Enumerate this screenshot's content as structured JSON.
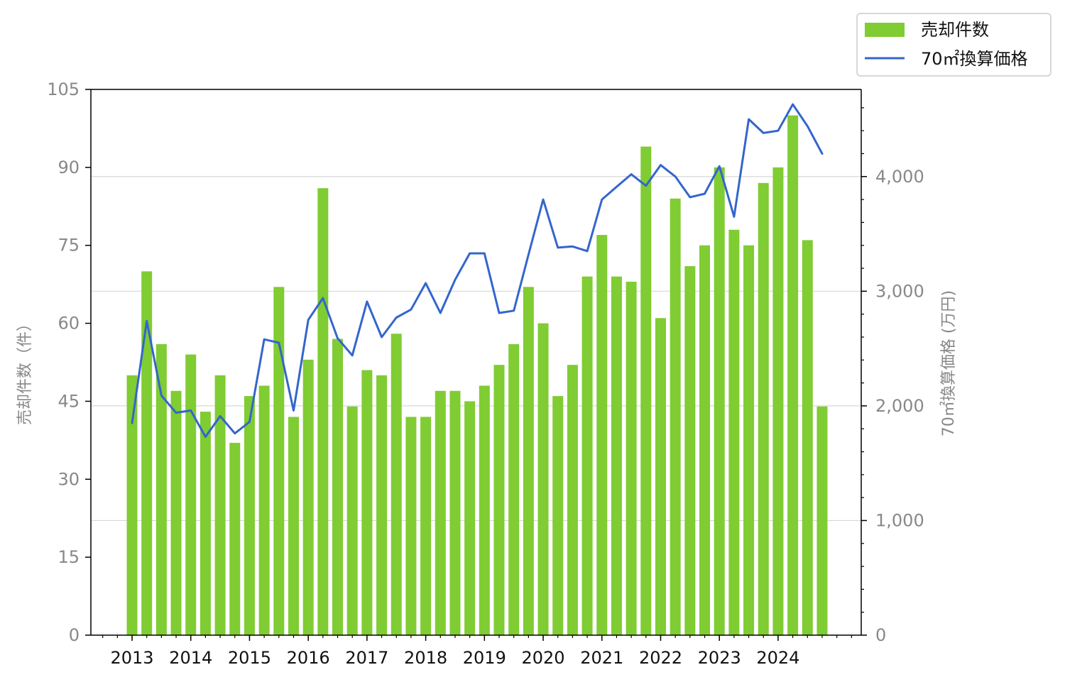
{
  "chart_data": {
    "type": "bar",
    "title": "",
    "xlabel": "",
    "ylabel": "売却件数（件）",
    "y2label": "70㎡換算価格 (万円)",
    "ylim": [
      0,
      105
    ],
    "y2lim": [
      0,
      4760
    ],
    "yticks": [
      "0",
      "15",
      "30",
      "45",
      "60",
      "75",
      "90",
      "105"
    ],
    "yticks_right": [
      "0",
      "1,000",
      "2,000",
      "3,000",
      "4,000"
    ],
    "x_tick_labels": [
      "2013",
      "2014",
      "2015",
      "2016",
      "2017",
      "2018",
      "2019",
      "2020",
      "2021",
      "2022",
      "2023",
      "2024"
    ],
    "grid": "horizontal, right axis",
    "legend_position": "top-right (outside)",
    "colors": {
      "bars": "#80CC33",
      "line": "#3366CC",
      "grid": "#d8d8d8",
      "tick_text": "#888888"
    },
    "categories": [
      "2013Q1",
      "2013Q2",
      "2013Q3",
      "2013Q4",
      "2014Q1",
      "2014Q2",
      "2014Q3",
      "2014Q4",
      "2015Q1",
      "2015Q2",
      "2015Q3",
      "2015Q4",
      "2016Q1",
      "2016Q2",
      "2016Q3",
      "2016Q4",
      "2017Q1",
      "2017Q2",
      "2017Q3",
      "2017Q4",
      "2018Q1",
      "2018Q2",
      "2018Q3",
      "2018Q4",
      "2019Q1",
      "2019Q2",
      "2019Q3",
      "2019Q4",
      "2020Q1",
      "2020Q2",
      "2020Q3",
      "2020Q4",
      "2021Q1",
      "2021Q2",
      "2021Q3",
      "2021Q4",
      "2022Q1",
      "2022Q2",
      "2022Q3",
      "2022Q4",
      "2023Q1",
      "2023Q2",
      "2023Q3",
      "2023Q4",
      "2024Q1",
      "2024Q2",
      "2024Q3",
      "2024Q4"
    ],
    "series": [
      {
        "name": "売却件数",
        "type": "bar",
        "axis": "left",
        "values": [
          50,
          70,
          56,
          47,
          54,
          43,
          50,
          37,
          46,
          48,
          67,
          42,
          53,
          86,
          57,
          44,
          51,
          50,
          58,
          42,
          42,
          47,
          47,
          45,
          48,
          52,
          56,
          67,
          60,
          46,
          52,
          69,
          77,
          69,
          68,
          94,
          61,
          84,
          71,
          75,
          90,
          78,
          75,
          87,
          90,
          100,
          76,
          44
        ]
      },
      {
        "name": "70㎡換算価格",
        "type": "line",
        "axis": "right",
        "values": [
          1850,
          2740,
          2090,
          1940,
          1960,
          1730,
          1910,
          1760,
          1860,
          2580,
          2550,
          1960,
          2750,
          2940,
          2590,
          2440,
          2910,
          2600,
          2770,
          2840,
          3070,
          2810,
          3100,
          3330,
          3330,
          2810,
          2830,
          3320,
          3800,
          3380,
          3390,
          3350,
          3800,
          3910,
          4020,
          3920,
          4100,
          4000,
          3820,
          3850,
          4090,
          3650,
          4500,
          4380,
          4400,
          4630,
          4440,
          4200
        ]
      }
    ]
  }
}
